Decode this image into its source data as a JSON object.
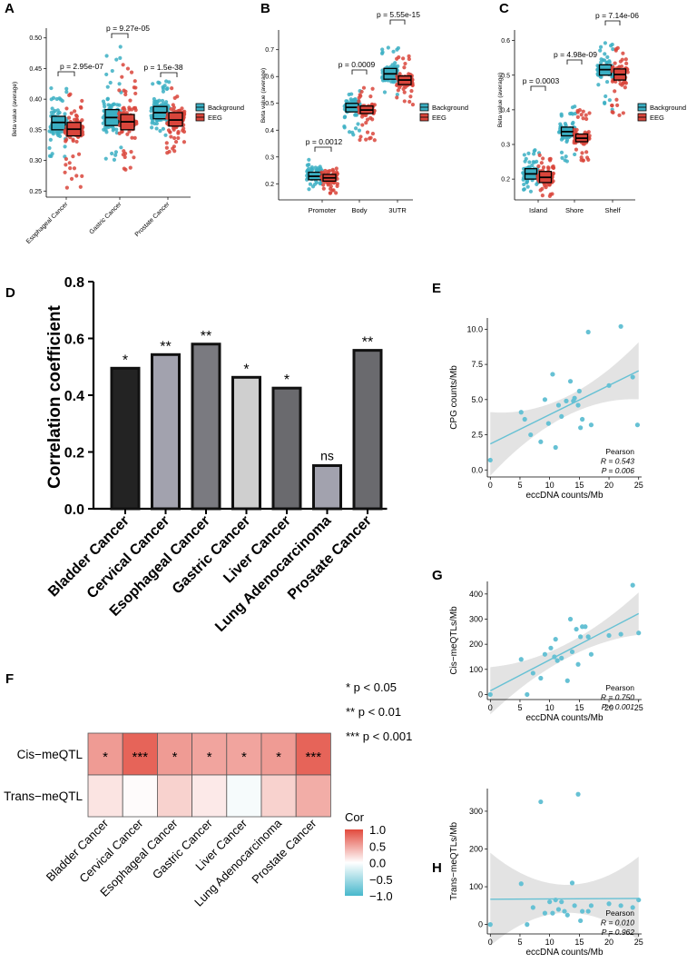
{
  "colors": {
    "background": "#3BAFC3",
    "eeg": "#D9453B",
    "bar_dark": "#232323",
    "heat_high": "#E2493C",
    "heat_mid": "#FFFFFF",
    "heat_low": "#48B8CC",
    "scatter": "#66C1D4",
    "band": "#DCDCDC"
  },
  "chart_data": [
    {
      "id": "A",
      "type": "boxplot",
      "panel_label": "A",
      "ylabel": "Beta value (average)",
      "ylim": [
        0.24,
        0.51
      ],
      "yticks": [
        "0.25",
        "0.30",
        "0.35",
        "0.40",
        "0.45",
        "0.50"
      ],
      "categories": [
        "Esophageal Cancer",
        "Gastric Cancer",
        "Prostate Cancer"
      ],
      "legend": [
        "Background",
        "EEG"
      ],
      "series": [
        {
          "name": "Background",
          "boxes": [
            {
              "q1": 0.35,
              "median": 0.362,
              "q3": 0.372
            },
            {
              "q1": 0.357,
              "median": 0.37,
              "q3": 0.383
            },
            {
              "q1": 0.368,
              "median": 0.378,
              "q3": 0.388
            }
          ],
          "ranges": [
            [
              0.29,
              0.42
            ],
            [
              0.29,
              0.49
            ],
            [
              0.33,
              0.43
            ]
          ]
        },
        {
          "name": "EEG",
          "boxes": [
            {
              "q1": 0.34,
              "median": 0.351,
              "q3": 0.362
            },
            {
              "q1": 0.35,
              "median": 0.363,
              "q3": 0.375
            },
            {
              "q1": 0.356,
              "median": 0.366,
              "q3": 0.378
            }
          ],
          "ranges": [
            [
              0.25,
              0.41
            ],
            [
              0.28,
              0.46
            ],
            [
              0.31,
              0.42
            ]
          ]
        }
      ],
      "pvalues": [
        "p = 2.95e-07",
        "p = 9.27e-05",
        "p = 1.5e-38"
      ]
    },
    {
      "id": "B",
      "type": "boxplot",
      "panel_label": "B",
      "ylabel": "Beta value (average)",
      "ylim": [
        0.14,
        0.76
      ],
      "yticks": [
        "0.2",
        "0.3",
        "0.4",
        "0.5",
        "0.6",
        "0.7"
      ],
      "categories": [
        "Promoter",
        "Body",
        "3UTR"
      ],
      "legend": [
        "Background",
        "EEG"
      ],
      "series": [
        {
          "name": "Background",
          "boxes": [
            {
              "q1": 0.215,
              "median": 0.228,
              "q3": 0.243
            },
            {
              "q1": 0.468,
              "median": 0.485,
              "q3": 0.5
            },
            {
              "q1": 0.59,
              "median": 0.61,
              "q3": 0.63
            }
          ],
          "ranges": [
            [
              0.17,
              0.29
            ],
            [
              0.38,
              0.55
            ],
            [
              0.52,
              0.71
            ]
          ]
        },
        {
          "name": "EEG",
          "boxes": [
            {
              "q1": 0.21,
              "median": 0.222,
              "q3": 0.235
            },
            {
              "q1": 0.462,
              "median": 0.475,
              "q3": 0.49
            },
            {
              "q1": 0.57,
              "median": 0.587,
              "q3": 0.602
            }
          ],
          "ranges": [
            [
              0.16,
              0.27
            ],
            [
              0.35,
              0.56
            ],
            [
              0.48,
              0.68
            ]
          ]
        }
      ],
      "pvalues": [
        "p = 0.0012",
        "p = 0.0009",
        "p = 5.55e-15"
      ]
    },
    {
      "id": "C",
      "type": "boxplot",
      "panel_label": "C",
      "ylabel": "Beta value (average)",
      "ylim": [
        0.14,
        0.62
      ],
      "yticks": [
        "0.2",
        "0.3",
        "0.4",
        "0.5",
        "0.6"
      ],
      "categories": [
        "Island",
        "Shore",
        "Shelf"
      ],
      "legend": [
        "Background",
        "EEG"
      ],
      "series": [
        {
          "name": "Background",
          "boxes": [
            {
              "q1": 0.2,
              "median": 0.215,
              "q3": 0.23
            },
            {
              "q1": 0.325,
              "median": 0.337,
              "q3": 0.35
            },
            {
              "q1": 0.5,
              "median": 0.516,
              "q3": 0.53
            }
          ],
          "ranges": [
            [
              0.16,
              0.29
            ],
            [
              0.25,
              0.42
            ],
            [
              0.4,
              0.6
            ]
          ]
        },
        {
          "name": "EEG",
          "boxes": [
            {
              "q1": 0.19,
              "median": 0.205,
              "q3": 0.222
            },
            {
              "q1": 0.308,
              "median": 0.318,
              "q3": 0.33
            },
            {
              "q1": 0.486,
              "median": 0.502,
              "q3": 0.518
            }
          ],
          "ranges": [
            [
              0.15,
              0.28
            ],
            [
              0.25,
              0.4
            ],
            [
              0.38,
              0.58
            ]
          ]
        }
      ],
      "pvalues": [
        "p = 0.0003",
        "p = 4.98e-09",
        "p = 7.14e-06"
      ]
    },
    {
      "id": "D",
      "type": "bar",
      "panel_label": "D",
      "ylabel": "Correlation coefficient",
      "ylim": [
        0,
        0.8
      ],
      "yticks": [
        "0.0",
        "0.2",
        "0.4",
        "0.6",
        "0.8"
      ],
      "categories": [
        "Bladder Cancer",
        "Cervical Cancer",
        "Esophageal Cancer",
        "Gastric Cancer",
        "Liver Cancer",
        "Lung Adenocarcinoma",
        "Prostate Cancer"
      ],
      "values": [
        0.495,
        0.543,
        0.58,
        0.463,
        0.425,
        0.152,
        0.558
      ],
      "significance": [
        "*",
        "**",
        "**",
        "*",
        "*",
        "ns",
        "**"
      ],
      "bar_colors": [
        "#232323",
        "#A2A2AE",
        "#7A7A80",
        "#CFCFCF",
        "#6A6A6E",
        "#A2A2AE",
        "#6A6A6E"
      ]
    },
    {
      "id": "F",
      "type": "heatmap",
      "panel_label": "F",
      "rows": [
        "Cis−meQTL",
        "Trans−meQTL"
      ],
      "columns": [
        "Bladder Cancer",
        "Cervical Cancer",
        "Esophageal Cancer",
        "Gastric Cancer",
        "Liver Cancer",
        "Lung Adenocarcinoma",
        "Prostate Cancer"
      ],
      "values": [
        [
          0.55,
          0.85,
          0.55,
          0.5,
          0.5,
          0.55,
          0.85
        ],
        [
          0.15,
          0.02,
          0.25,
          0.12,
          -0.05,
          0.25,
          0.45
        ]
      ],
      "annotations": [
        [
          "*",
          "***",
          "*",
          "*",
          "*",
          "*",
          "***"
        ],
        [
          "",
          "",
          "",
          "",
          "",
          "",
          ""
        ]
      ],
      "legend_title": "Cor",
      "legend_ticks": [
        "1.0",
        "0.5",
        "0.0",
        "−0.5",
        "−1.0"
      ],
      "significance_key": [
        "* p < 0.05",
        "** p < 0.01",
        "*** p < 0.001"
      ]
    },
    {
      "id": "E",
      "type": "scatter",
      "panel_label": "E",
      "xlabel": "eccDNA counts/Mb",
      "ylabel": "CPG counts/Mb",
      "xlim": [
        -0.5,
        25.5
      ],
      "ylim": [
        -0.5,
        10.8
      ],
      "xticks": [
        0,
        5,
        10,
        15,
        20,
        25
      ],
      "yticks": [
        "0.0",
        "2.5",
        "5.0",
        "7.5",
        "10.0"
      ],
      "x": [
        0,
        5.2,
        5.8,
        6.8,
        8.5,
        9.2,
        9.8,
        10.5,
        11,
        11.5,
        12,
        12.8,
        13.5,
        14,
        14.2,
        14.8,
        15,
        15.2,
        15.5,
        16.5,
        17,
        20,
        22,
        24,
        24.8
      ],
      "y": [
        0.7,
        4.1,
        3.6,
        2.5,
        2.0,
        5.0,
        3.3,
        6.8,
        1.6,
        4.6,
        3.8,
        4.9,
        6.3,
        4.9,
        5.1,
        4.6,
        5.6,
        3.0,
        3.6,
        9.8,
        3.2,
        6.0,
        10.2,
        6.6,
        3.2
      ],
      "fit": [
        1.85,
        7.05
      ],
      "stats": [
        "Pearson",
        "R = 0.543",
        "P = 0.006"
      ]
    },
    {
      "id": "G",
      "type": "scatter",
      "panel_label": "G",
      "xlabel": "eccDNA counts/Mb",
      "ylabel": "Cis−meQTLs/Mb",
      "xlim": [
        -0.5,
        25.5
      ],
      "ylim": [
        -20,
        450
      ],
      "xticks": [
        0,
        5,
        10,
        15,
        20,
        25
      ],
      "yticks": [
        "0",
        "100",
        "200",
        "300",
        "400"
      ],
      "x": [
        0,
        5.2,
        6.2,
        7.2,
        8.5,
        9.2,
        10.2,
        10.8,
        11,
        11.3,
        12,
        13,
        13.5,
        13.8,
        14.5,
        14.8,
        15.2,
        15.5,
        16,
        16.5,
        17,
        20,
        22,
        24,
        25
      ],
      "y": [
        0,
        140,
        0,
        85,
        65,
        160,
        185,
        150,
        220,
        135,
        145,
        55,
        300,
        170,
        260,
        120,
        230,
        270,
        270,
        230,
        160,
        235,
        240,
        435,
        245
      ],
      "fit": [
        15,
        322
      ],
      "stats": [
        "Pearson",
        "R = 0.750",
        "P < 0.001"
      ]
    },
    {
      "id": "H",
      "type": "scatter",
      "panel_label": "H",
      "xlabel": "eccDNA counts/Mb",
      "ylabel": "Trans−meQTLs/Mb",
      "xlim": [
        -0.5,
        25.5
      ],
      "ylim": [
        -25,
        360
      ],
      "xticks": [
        0,
        5,
        10,
        15,
        20,
        25
      ],
      "yticks": [
        "0",
        "100",
        "200",
        "300"
      ],
      "x": [
        0,
        5.2,
        6.2,
        7.2,
        8.5,
        9.2,
        10,
        10.5,
        11,
        11.5,
        12,
        12.5,
        13,
        13.8,
        14.2,
        14.8,
        15.2,
        15.5,
        16.5,
        17,
        20,
        22,
        24,
        25
      ],
      "y": [
        0,
        108,
        0,
        45,
        325,
        30,
        60,
        30,
        65,
        40,
        60,
        35,
        25,
        110,
        50,
        345,
        10,
        35,
        35,
        50,
        55,
        50,
        45,
        65
      ],
      "fit": [
        67,
        69
      ],
      "stats": [
        "Pearson",
        "R = 0.010",
        "P = 0.962"
      ]
    }
  ]
}
